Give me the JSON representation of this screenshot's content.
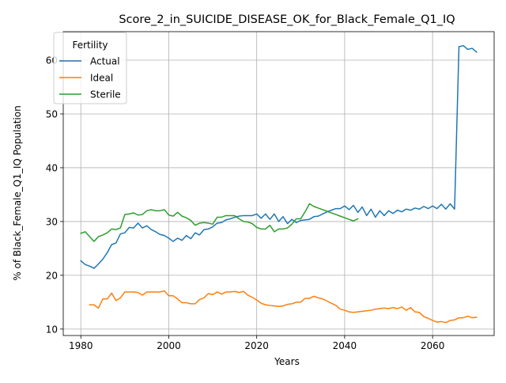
{
  "chart_data": {
    "type": "line",
    "title": "Score_2_in_SUICIDE_DISEASE_OK_for_Black_Female_Q1_IQ",
    "xlabel": "Years",
    "ylabel": "% of Black_Female_Q1_IQ Population",
    "xlim": [
      1976,
      2074
    ],
    "ylim": [
      8.8,
      65.3
    ],
    "xticks": [
      1980,
      2000,
      2020,
      2040,
      2060
    ],
    "yticks": [
      10,
      20,
      30,
      40,
      50,
      60
    ],
    "grid": true,
    "legend": {
      "title": "Fertility",
      "placement": "top-left"
    },
    "series": [
      {
        "name": "Actual",
        "color": "#1f77b4",
        "x": [
          1980,
          1981,
          1982,
          1983,
          1984,
          1985,
          1986,
          1987,
          1988,
          1989,
          1990,
          1991,
          1992,
          1993,
          1994,
          1995,
          1996,
          1997,
          1998,
          1999,
          2000,
          2001,
          2002,
          2003,
          2004,
          2005,
          2006,
          2007,
          2008,
          2009,
          2010,
          2011,
          2012,
          2013,
          2014,
          2015,
          2016,
          2017,
          2018,
          2019,
          2020,
          2021,
          2022,
          2023,
          2024,
          2025,
          2026,
          2027,
          2028,
          2029,
          2030,
          2031,
          2032,
          2033,
          2034,
          2035,
          2036,
          2037,
          2038,
          2039,
          2040,
          2041,
          2042,
          2043,
          2044,
          2045,
          2046,
          2047,
          2048,
          2049,
          2050,
          2051,
          2052,
          2053,
          2054,
          2055,
          2056,
          2057,
          2058,
          2059,
          2060,
          2061,
          2062,
          2063,
          2064,
          2065,
          2066,
          2067,
          2068,
          2069,
          2070
        ],
        "values": [
          22.7,
          22.0,
          21.7,
          21.3,
          22.1,
          23.0,
          24.2,
          25.7,
          26.0,
          27.7,
          27.9,
          28.9,
          28.8,
          29.7,
          28.8,
          29.2,
          28.5,
          28.1,
          27.6,
          27.4,
          26.9,
          26.3,
          26.9,
          26.5,
          27.4,
          26.8,
          27.9,
          27.5,
          28.5,
          28.6,
          29.0,
          29.7,
          29.8,
          30.3,
          30.5,
          30.8,
          31.0,
          31.1,
          31.1,
          31.1,
          31.4,
          30.6,
          31.4,
          30.4,
          31.4,
          30.0,
          30.9,
          29.6,
          30.4,
          29.8,
          30.2,
          30.3,
          30.4,
          30.9,
          31.0,
          31.4,
          31.8,
          32.1,
          32.4,
          32.4,
          32.9,
          32.2,
          33.0,
          31.7,
          32.7,
          31.1,
          32.3,
          30.8,
          32.0,
          31.1,
          32.0,
          31.5,
          32.1,
          31.8,
          32.3,
          32.1,
          32.5,
          32.3,
          32.8,
          32.4,
          32.9,
          32.4,
          33.2,
          32.3,
          33.3,
          32.3,
          62.5,
          62.7,
          62.0,
          62.2,
          61.5
        ]
      },
      {
        "name": "Ideal",
        "color": "#ff7f0e",
        "x": [
          1982,
          1983,
          1984,
          1985,
          1986,
          1987,
          1988,
          1989,
          1990,
          1991,
          1992,
          1993,
          1994,
          1995,
          1996,
          1997,
          1998,
          1999,
          2000,
          2001,
          2002,
          2003,
          2004,
          2005,
          2006,
          2007,
          2008,
          2009,
          2010,
          2011,
          2012,
          2013,
          2014,
          2015,
          2016,
          2017,
          2018,
          2019,
          2020,
          2021,
          2022,
          2023,
          2024,
          2025,
          2026,
          2027,
          2028,
          2029,
          2030,
          2031,
          2032,
          2033,
          2034,
          2035,
          2036,
          2037,
          2038,
          2039,
          2040,
          2041,
          2042,
          2043,
          2044,
          2045,
          2046,
          2047,
          2048,
          2049,
          2050,
          2051,
          2052,
          2053,
          2054,
          2055,
          2056,
          2057,
          2058,
          2059,
          2060,
          2061,
          2062,
          2063,
          2064,
          2065,
          2066,
          2067,
          2068,
          2069,
          2070
        ],
        "values": [
          14.5,
          14.5,
          13.9,
          15.6,
          15.6,
          16.7,
          15.3,
          15.8,
          16.9,
          16.9,
          16.9,
          16.8,
          16.3,
          16.9,
          16.9,
          16.9,
          16.9,
          17.1,
          16.2,
          16.2,
          15.6,
          14.9,
          14.9,
          14.7,
          14.7,
          15.5,
          15.8,
          16.6,
          16.4,
          16.9,
          16.5,
          16.9,
          16.9,
          17.0,
          16.8,
          17.0,
          16.3,
          15.9,
          15.4,
          14.8,
          14.5,
          14.4,
          14.3,
          14.2,
          14.3,
          14.6,
          14.7,
          15.0,
          15.0,
          15.7,
          15.7,
          16.1,
          15.8,
          15.6,
          15.2,
          14.8,
          14.4,
          13.7,
          13.5,
          13.2,
          13.1,
          13.2,
          13.3,
          13.4,
          13.5,
          13.7,
          13.8,
          13.9,
          13.8,
          14.0,
          13.8,
          14.1,
          13.5,
          14.0,
          13.2,
          13.1,
          12.3,
          12.0,
          11.6,
          11.3,
          11.4,
          11.2,
          11.6,
          11.7,
          12.1,
          12.1,
          12.4,
          12.1,
          12.2
        ]
      },
      {
        "name": "Sterile",
        "color": "#2ca02c",
        "x": [
          1980,
          1981,
          1982,
          1983,
          1984,
          1985,
          1986,
          1987,
          1988,
          1989,
          1990,
          1991,
          1992,
          1993,
          1994,
          1995,
          1996,
          1997,
          1998,
          1999,
          2000,
          2001,
          2002,
          2003,
          2004,
          2005,
          2006,
          2007,
          2008,
          2009,
          2010,
          2011,
          2012,
          2013,
          2014,
          2015,
          2016,
          2017,
          2018,
          2019,
          2020,
          2021,
          2022,
          2023,
          2024,
          2025,
          2026,
          2027,
          2028,
          2029,
          2030,
          2031,
          2032,
          2033,
          2034,
          2035,
          2036,
          2037,
          2038,
          2039,
          2040,
          2041,
          2042,
          2043
        ],
        "values": [
          27.8,
          28.1,
          27.2,
          26.3,
          27.2,
          27.5,
          27.9,
          28.6,
          28.5,
          28.8,
          31.3,
          31.4,
          31.6,
          31.2,
          31.3,
          32.0,
          32.2,
          32.0,
          32.0,
          32.2,
          31.2,
          31.0,
          31.7,
          31.0,
          30.7,
          30.2,
          29.3,
          29.7,
          29.8,
          29.7,
          29.5,
          30.8,
          30.8,
          31.1,
          31.1,
          31.1,
          30.5,
          30.0,
          29.9,
          29.6,
          28.9,
          28.6,
          28.6,
          29.3,
          28.1,
          28.6,
          28.6,
          28.8,
          29.5,
          30.5,
          30.5,
          31.8,
          33.3,
          32.8,
          32.5,
          32.2,
          31.9,
          31.6,
          31.3,
          31.0,
          30.7,
          30.4,
          30.1,
          30.5
        ]
      }
    ]
  }
}
